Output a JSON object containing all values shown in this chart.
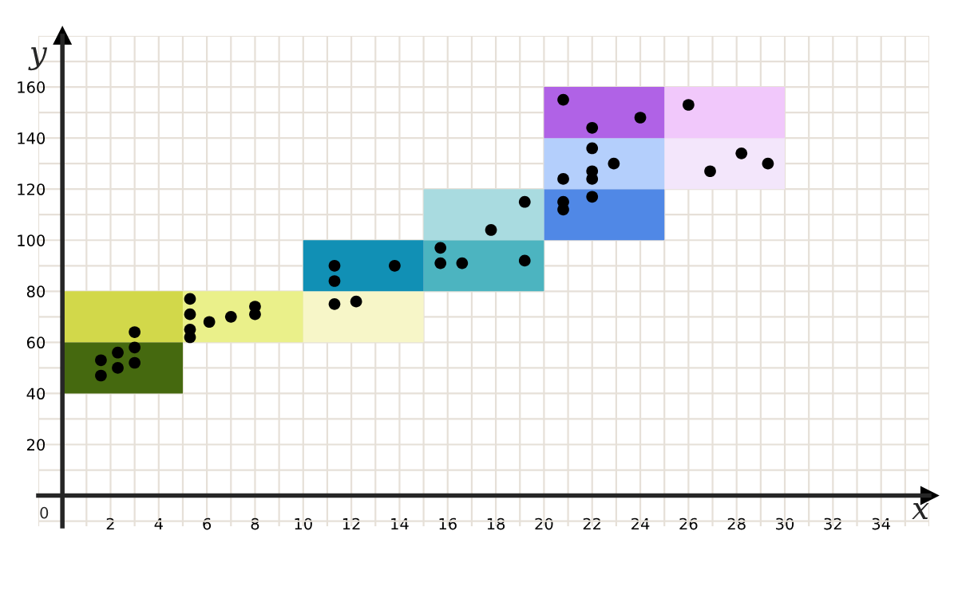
{
  "chart_data": {
    "type": "scatter",
    "xlabel": "x",
    "ylabel": "y",
    "xlim": [
      -1,
      36
    ],
    "ylim": [
      -12,
      180
    ],
    "xticks": [
      2,
      4,
      6,
      8,
      10,
      12,
      14,
      16,
      18,
      20,
      22,
      24,
      26,
      28,
      30,
      32,
      34
    ],
    "yticks": [
      20,
      40,
      60,
      80,
      100,
      120,
      140,
      160
    ],
    "grid": true,
    "marker": "circle",
    "annotations": [
      "0"
    ],
    "series": [
      {
        "type": "bar",
        "x": [
          2.5,
          7.5,
          12.5,
          17.5,
          22.5,
          27.5
        ],
        "base": [
          40,
          60,
          60,
          80,
          100,
          120
        ],
        "values": [
          20,
          20,
          20,
          20,
          20,
          20
        ],
        "colors": [
          "#45690f",
          "#eaf08a",
          "#f7f6c8",
          "#4cb4c0",
          "#5088e6",
          "#f3e6fb"
        ]
      },
      {
        "type": "bar",
        "x": [
          2.5,
          12.5,
          17.5,
          22.5,
          27.5
        ],
        "base": [
          60,
          80,
          100,
          120,
          140
        ],
        "values": [
          20,
          20,
          20,
          20,
          20
        ],
        "colors": [
          "#d2d84a",
          "#1190b5",
          "#a9dbe0",
          "#b4cffc",
          "#f1c8fb"
        ]
      },
      {
        "type": "bar",
        "x": [
          22.5
        ],
        "base": [
          140
        ],
        "values": [
          20
        ],
        "colors": [
          "#b062e6"
        ]
      },
      {
        "color": "#000000",
        "x": [
          1.6,
          1.6,
          2.3,
          2.3,
          3,
          3,
          3,
          5.3,
          5.3,
          5.3,
          5.3,
          6.1,
          7,
          8,
          8,
          11.3,
          11.3,
          11.3,
          12.2,
          13.8,
          15.7,
          15.7,
          16.6,
          17.8,
          19.2,
          19.2,
          20.8,
          20.8,
          20.8,
          20.8,
          22,
          22,
          22,
          22,
          22,
          22.9,
          24,
          26,
          26.9,
          28.2,
          29.3
        ],
        "values": [
          47,
          53,
          50,
          56,
          52,
          58,
          64,
          62,
          65,
          71,
          77,
          68,
          70,
          71,
          74,
          75,
          84,
          90,
          76,
          90,
          91,
          97,
          91,
          104,
          92,
          115,
          112,
          115,
          124,
          155,
          117,
          124,
          127,
          136,
          144,
          130,
          148,
          153,
          127,
          134,
          130
        ]
      }
    ]
  }
}
